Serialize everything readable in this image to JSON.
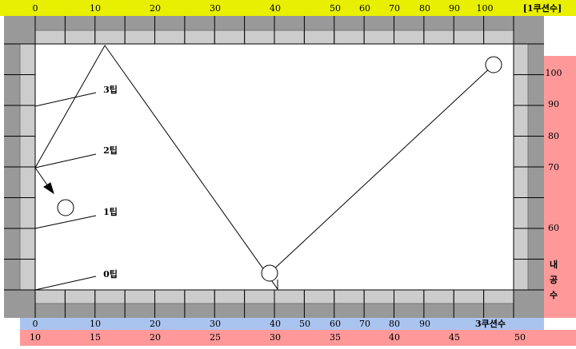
{
  "top_scale": {
    "labels": [
      "0",
      "10",
      "20",
      "30",
      "40",
      "50",
      "60",
      "70",
      "80",
      "90",
      "100"
    ],
    "title": "[1쿠션수]"
  },
  "right_scale": {
    "labels": [
      "100",
      "90",
      "80",
      "70",
      "60"
    ],
    "title": "내공수"
  },
  "bottom_scale": {
    "labels": [
      "0",
      "10",
      "20",
      "30",
      "40",
      "50",
      "60",
      "70",
      "80",
      "90"
    ],
    "title": "3쿠션수"
  },
  "bottom_scale2": {
    "labels": [
      "10",
      "15",
      "20",
      "25",
      "30",
      "35",
      "40",
      "45",
      "50"
    ]
  },
  "tips": [
    "3팁",
    "2팁",
    "1팁",
    "0팁"
  ]
}
